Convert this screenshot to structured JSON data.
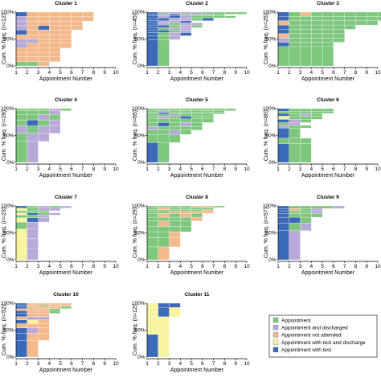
{
  "figure": {
    "x_axis_label": "Appointment Number",
    "y_axis_label": "Cum. % freq.",
    "x_ticks": [
      "1",
      "2",
      "3",
      "4",
      "5",
      "6",
      "7",
      "8",
      "9",
      "10"
    ],
    "y_ticks": [
      "0%",
      "50%",
      "100%"
    ]
  },
  "legend": [
    {
      "label": "Appointment",
      "color": "#7ec87e"
    },
    {
      "label": "Appointment and discharged",
      "color": "#b8a9d9"
    },
    {
      "label": "Appointment not attended",
      "color": "#f3b98a"
    },
    {
      "label": "Appointment with test and discharge",
      "color": "#f8f3a0"
    },
    {
      "label": "Appointment with test",
      "color": "#3a6ab8"
    }
  ],
  "chart_data": [
    {
      "type": "bar",
      "title": "Cluster 1",
      "n_label": "(n=12)",
      "xlim": [
        1,
        10
      ],
      "ylim": [
        0,
        100
      ],
      "rows": [
        {
          "cum": 8,
          "seq": "AAN"
        },
        {
          "cum": 17,
          "seq": "NNNN"
        },
        {
          "cum": 25,
          "seq": "NNNN"
        },
        {
          "cum": 33,
          "seq": "NNNN"
        },
        {
          "cum": 42,
          "seq": "GNNNN"
        },
        {
          "cum": 50,
          "seq": "GGNNN"
        },
        {
          "cum": 58,
          "seq": "NNNNN"
        },
        {
          "cum": 67,
          "seq": "TNNNN"
        },
        {
          "cum": 75,
          "seq": "GNTNNN"
        },
        {
          "cum": 83,
          "seq": "GNNNNN"
        },
        {
          "cum": 92,
          "seq": "GNNNNNN"
        },
        {
          "cum": 100,
          "seq": "TNNNNNN"
        }
      ]
    },
    {
      "type": "bar",
      "title": "Cluster 2",
      "n_label": "(n=45)",
      "xlim": [
        1,
        10
      ],
      "ylim": [
        0,
        100
      ],
      "rows": [
        {
          "cum": 49,
          "seq": "TA"
        },
        {
          "cum": 56,
          "seq": "TAG"
        },
        {
          "cum": 62,
          "seq": "TAGT"
        },
        {
          "cum": 67,
          "seq": "TTAG"
        },
        {
          "cum": 71,
          "seq": "TAGG"
        },
        {
          "cum": 76,
          "seq": "TTAGA"
        },
        {
          "cum": 80,
          "seq": "TGAGG"
        },
        {
          "cum": 84,
          "seq": "TGGT"
        },
        {
          "cum": 89,
          "seq": "TTGGAT"
        },
        {
          "cum": 93,
          "seq": "TGTGAAAA"
        },
        {
          "cum": 96,
          "seq": "TATAAGA"
        },
        {
          "cum": 100,
          "seq": "TGGGGAAAA"
        }
      ]
    },
    {
      "type": "bar",
      "title": "Cluster 3",
      "n_label": "(n=25)",
      "xlim": [
        1,
        10
      ],
      "ylim": [
        0,
        100
      ],
      "rows": [
        {
          "cum": 36,
          "seq": "AAAAA"
        },
        {
          "cum": 44,
          "seq": "TAAAA"
        },
        {
          "cum": 52,
          "seq": "GAAAAA"
        },
        {
          "cum": 60,
          "seq": "NAAAAA"
        },
        {
          "cum": 68,
          "seq": "TAAAAA"
        },
        {
          "cum": 76,
          "seq": "TAAAAAA"
        },
        {
          "cum": 84,
          "seq": "NAAAAAAAA"
        },
        {
          "cum": 92,
          "seq": "TAAAAAAAAA"
        },
        {
          "cum": 100,
          "seq": "TANAAAAAAA"
        }
      ]
    },
    {
      "type": "bar",
      "title": "Cluster 4",
      "n_label": "(n=28)",
      "xlim": [
        1,
        10
      ],
      "ylim": [
        0,
        100
      ],
      "rows": [
        {
          "cum": 39,
          "seq": "AG"
        },
        {
          "cum": 54,
          "seq": "AGG"
        },
        {
          "cum": 68,
          "seq": "GAGG"
        },
        {
          "cum": 79,
          "seq": "ATAG"
        },
        {
          "cum": 89,
          "seq": "AAGA"
        },
        {
          "cum": 96,
          "seq": "AAAG"
        },
        {
          "cum": 100,
          "seq": "AAAGA"
        }
      ]
    },
    {
      "type": "bar",
      "title": "Cluster 5",
      "n_label": "(n=65)",
      "xlim": [
        1,
        10
      ],
      "ylim": [
        0,
        100
      ],
      "rows": [
        {
          "cum": 37,
          "seq": "TA"
        },
        {
          "cum": 52,
          "seq": "AAA"
        },
        {
          "cum": 60,
          "seq": "AAGA"
        },
        {
          "cum": 67,
          "seq": "GAAAA"
        },
        {
          "cum": 74,
          "seq": "ATAGA"
        },
        {
          "cum": 81,
          "seq": "AAAAAA"
        },
        {
          "cum": 86,
          "seq": "AGATAA"
        },
        {
          "cum": 90,
          "seq": "AAGAAA"
        },
        {
          "cum": 93,
          "seq": "ATAAAAA"
        },
        {
          "cum": 96,
          "seq": "AGAAAAA"
        },
        {
          "cum": 100,
          "seq": "AAAAAAAA"
        }
      ]
    },
    {
      "type": "bar",
      "title": "Cluster 6",
      "n_label": "(n=80)",
      "xlim": [
        1,
        10
      ],
      "ylim": [
        0,
        100
      ],
      "rows": [
        {
          "cum": 35,
          "seq": "TAA"
        },
        {
          "cum": 45,
          "seq": "AAA"
        },
        {
          "cum": 64,
          "seq": "TA"
        },
        {
          "cum": 69,
          "seq": "GAA"
        },
        {
          "cum": 74,
          "seq": "AG"
        },
        {
          "cum": 80,
          "seq": "TGA"
        },
        {
          "cum": 86,
          "seq": "YAAA"
        },
        {
          "cum": 91,
          "seq": "TAGA"
        },
        {
          "cum": 95,
          "seq": "AAAAA"
        },
        {
          "cum": 100,
          "seq": "TAAAA"
        }
      ]
    },
    {
      "type": "bar",
      "title": "Cluster 7",
      "n_label": "(n=23)",
      "xlim": [
        1,
        10
      ],
      "ylim": [
        0,
        100
      ],
      "rows": [
        {
          "cum": 22,
          "seq": "YG"
        },
        {
          "cum": 39,
          "seq": "YG"
        },
        {
          "cum": 57,
          "seq": "YG"
        },
        {
          "cum": 70,
          "seq": "AG"
        },
        {
          "cum": 78,
          "seq": "YTG"
        },
        {
          "cum": 83,
          "seq": "AAG"
        },
        {
          "cum": 87,
          "seq": "YTAG"
        },
        {
          "cum": 91,
          "seq": "AAA"
        },
        {
          "cum": 96,
          "seq": "YAGG"
        },
        {
          "cum": 100,
          "seq": "TAGAG"
        }
      ]
    },
    {
      "type": "bar",
      "title": "Cluster 8",
      "n_label": "(n=29)",
      "xlim": [
        1,
        10
      ],
      "ylim": [
        0,
        100
      ],
      "rows": [
        {
          "cum": 24,
          "seq": "AN"
        },
        {
          "cum": 41,
          "seq": "AAN"
        },
        {
          "cum": 52,
          "seq": "AAN"
        },
        {
          "cum": 62,
          "seq": "AAAA"
        },
        {
          "cum": 72,
          "seq": "ANAA"
        },
        {
          "cum": 79,
          "seq": "AAAAN"
        },
        {
          "cum": 86,
          "seq": "ANANA"
        },
        {
          "cum": 90,
          "seq": "AANNNN"
        },
        {
          "cum": 93,
          "seq": "AAAAAN"
        },
        {
          "cum": 97,
          "seq": "ANAAAA"
        },
        {
          "cum": 100,
          "seq": "AAAANNA"
        }
      ]
    },
    {
      "type": "bar",
      "title": "Cluster 9",
      "n_label": "(n=57)",
      "xlim": [
        1,
        10
      ],
      "ylim": [
        0,
        100
      ],
      "rows": [
        {
          "cum": 54,
          "seq": "TG"
        },
        {
          "cum": 68,
          "seq": "TAG"
        },
        {
          "cum": 79,
          "seq": "TTA"
        },
        {
          "cum": 86,
          "seq": "TAAA"
        },
        {
          "cum": 91,
          "seq": "TAAG"
        },
        {
          "cum": 95,
          "seq": "TNAG"
        },
        {
          "cum": 100,
          "seq": "TAAAAG"
        }
      ]
    },
    {
      "type": "bar",
      "title": "Cluster 10",
      "n_label": "(n=52)",
      "xlim": [
        1,
        10
      ],
      "ylim": [
        0,
        100
      ],
      "rows": [
        {
          "cum": 31,
          "seq": "TN"
        },
        {
          "cum": 44,
          "seq": "TNN"
        },
        {
          "cum": 54,
          "seq": "TGN"
        },
        {
          "cum": 62,
          "seq": "NNN"
        },
        {
          "cum": 69,
          "seq": "TYN"
        },
        {
          "cum": 75,
          "seq": "NGG"
        },
        {
          "cum": 81,
          "seq": "TNN"
        },
        {
          "cum": 86,
          "seq": "TNNA"
        },
        {
          "cum": 90,
          "seq": "NNNA"
        },
        {
          "cum": 94,
          "seq": "TNNNA"
        },
        {
          "cum": 97,
          "seq": "TNANN"
        },
        {
          "cum": 100,
          "seq": "TNNNN"
        }
      ]
    },
    {
      "type": "bar",
      "title": "Cluster 11",
      "n_label": "(n=12)",
      "xlim": [
        1,
        10
      ],
      "ylim": [
        0,
        100
      ],
      "rows": [
        {
          "cum": 42,
          "seq": "TY"
        },
        {
          "cum": 75,
          "seq": "YY"
        },
        {
          "cum": 92,
          "seq": "YTY"
        },
        {
          "cum": 100,
          "seq": "YTT"
        }
      ]
    }
  ]
}
